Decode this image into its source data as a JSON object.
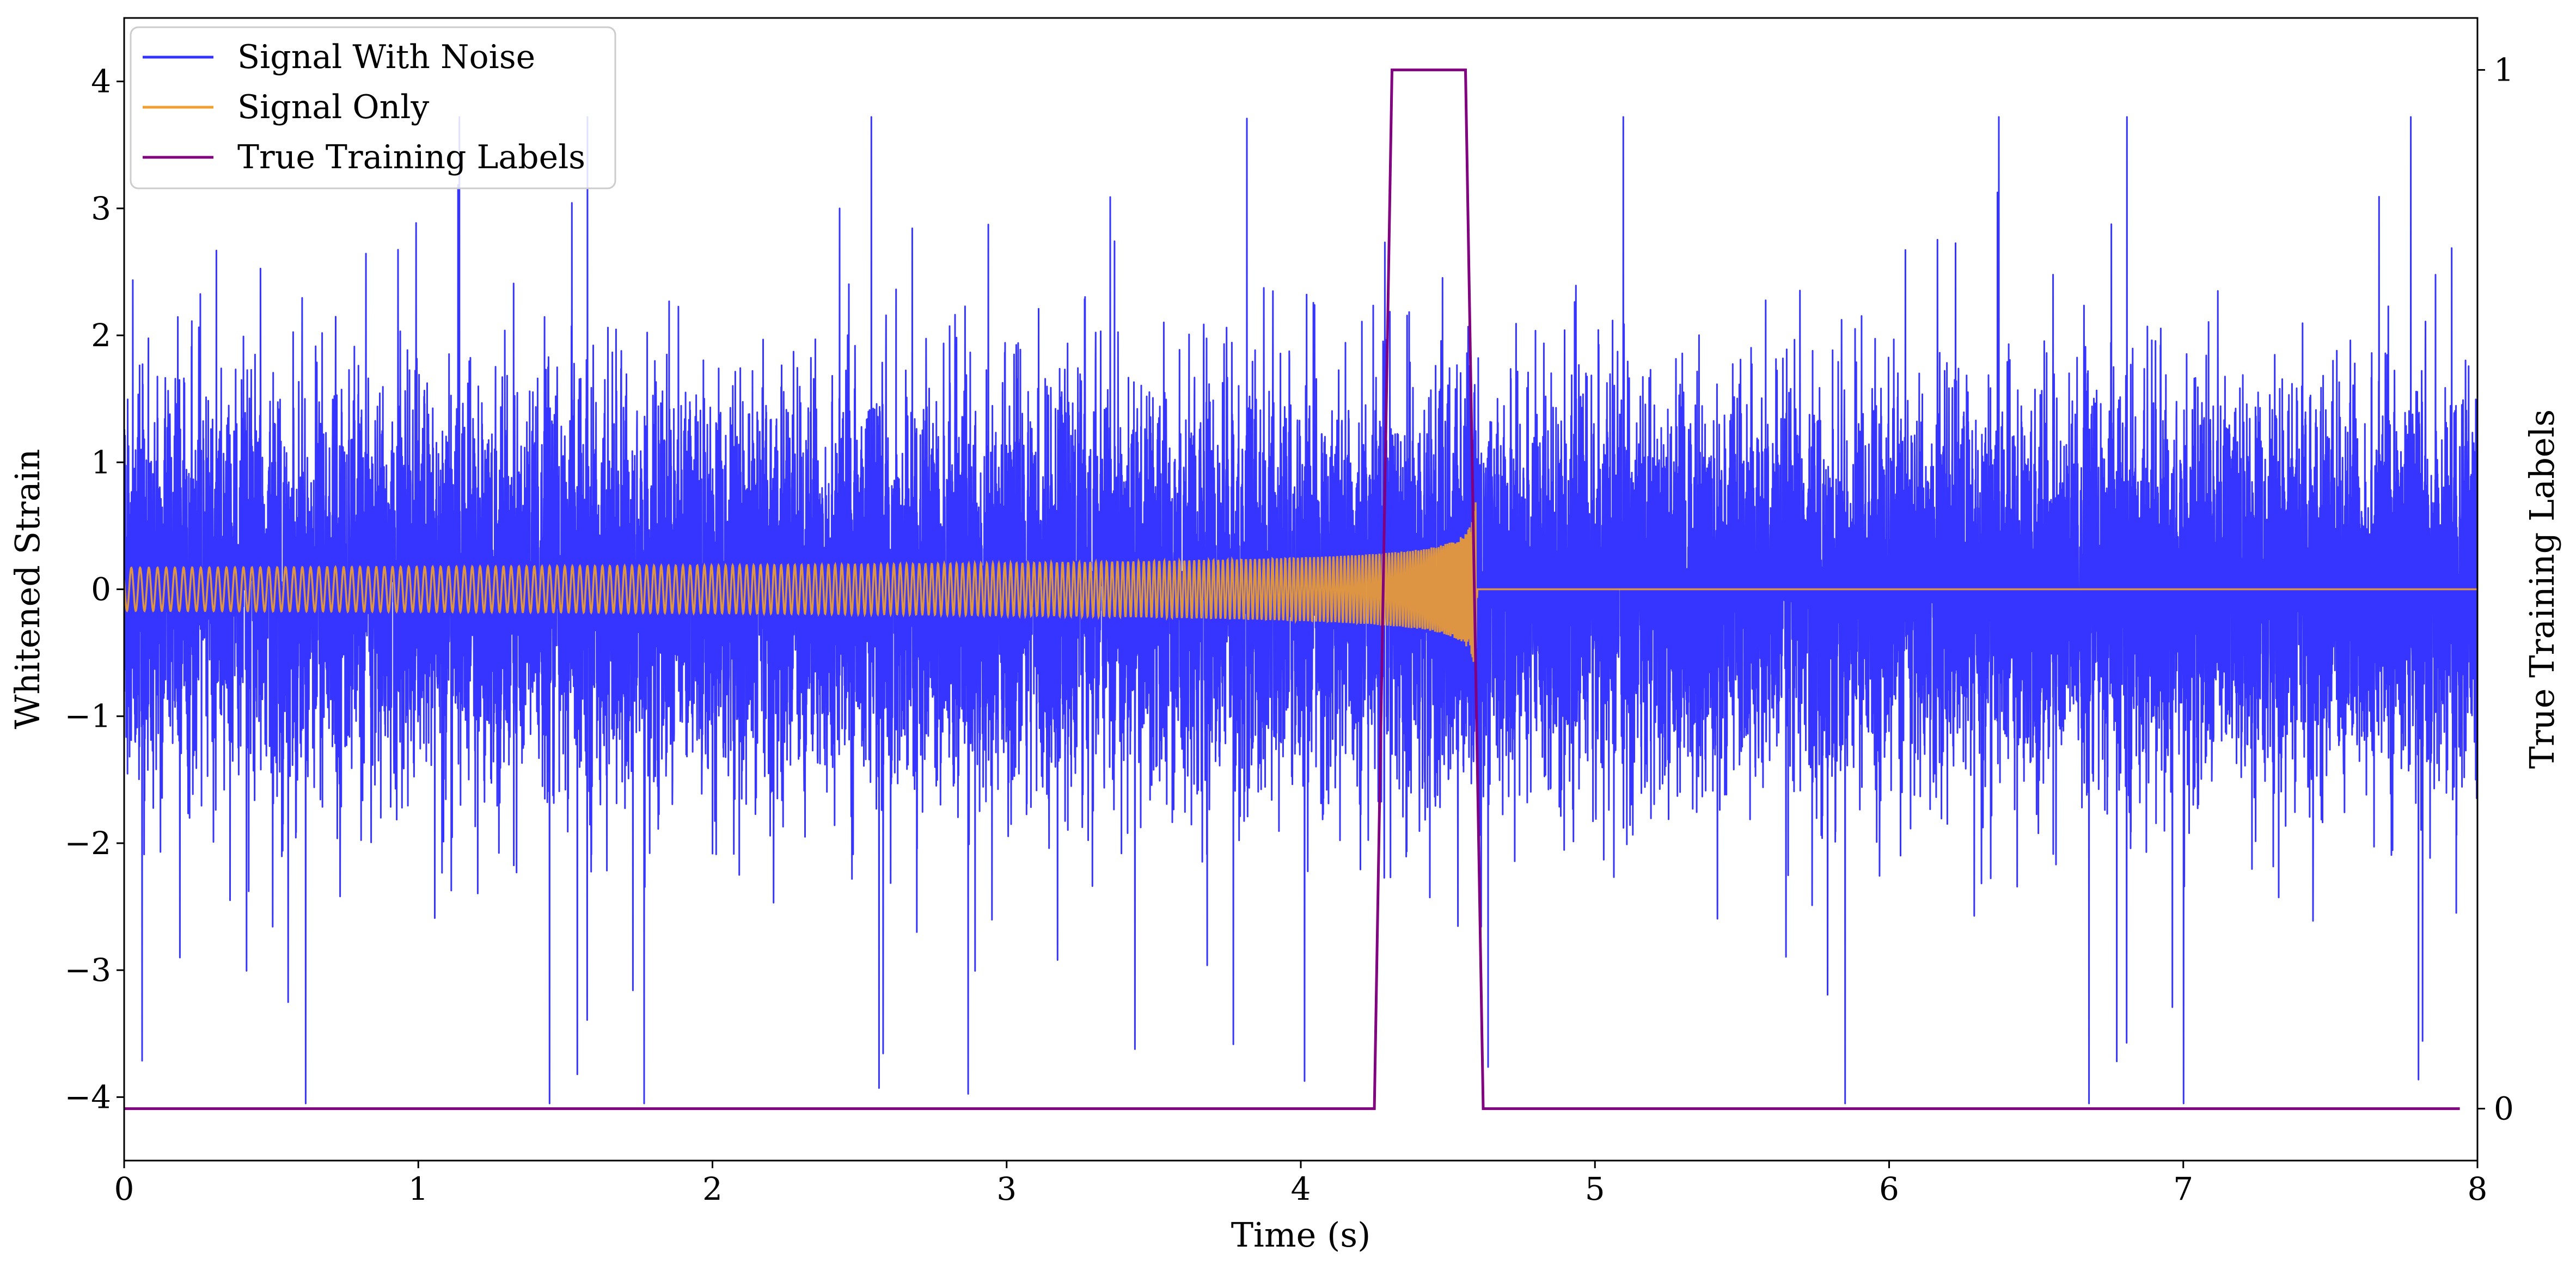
{
  "chart_data": {
    "type": "line",
    "xlabel": "Time (s)",
    "ylabel": "Whitened Strain",
    "y2label": "True Training Labels",
    "xlim": [
      0,
      8
    ],
    "ylim": [
      -4.5,
      4.5
    ],
    "y2lim": [
      -0.05,
      1.05
    ],
    "x_ticks": [
      0,
      1,
      2,
      3,
      4,
      5,
      6,
      7,
      8
    ],
    "y_ticks": [
      -4,
      -3,
      -2,
      -1,
      0,
      1,
      2,
      3,
      4
    ],
    "y2_ticks": [
      0,
      1
    ],
    "grid": false,
    "legend_position": "top-left",
    "series": [
      {
        "name": "Signal With Noise",
        "axis": "left",
        "color": "#3333ff",
        "description_values": {
          "noise_std": 0.75,
          "min": -4.05,
          "max": 3.72,
          "x_range": [
            0,
            8
          ]
        }
      },
      {
        "name": "Signal Only",
        "axis": "left",
        "color": "#f0a030",
        "chirp": {
          "start": 0,
          "merger": 4.6,
          "end": 8,
          "amp_start": 0.05,
          "amp_merger": 0.75
        }
      },
      {
        "name": "True Training Labels",
        "axis": "right",
        "color": "#800080",
        "x": [
          0,
          4.25,
          4.31,
          4.56,
          4.62,
          7.94
        ],
        "y": [
          0,
          0,
          1,
          1,
          0,
          0
        ]
      }
    ]
  }
}
